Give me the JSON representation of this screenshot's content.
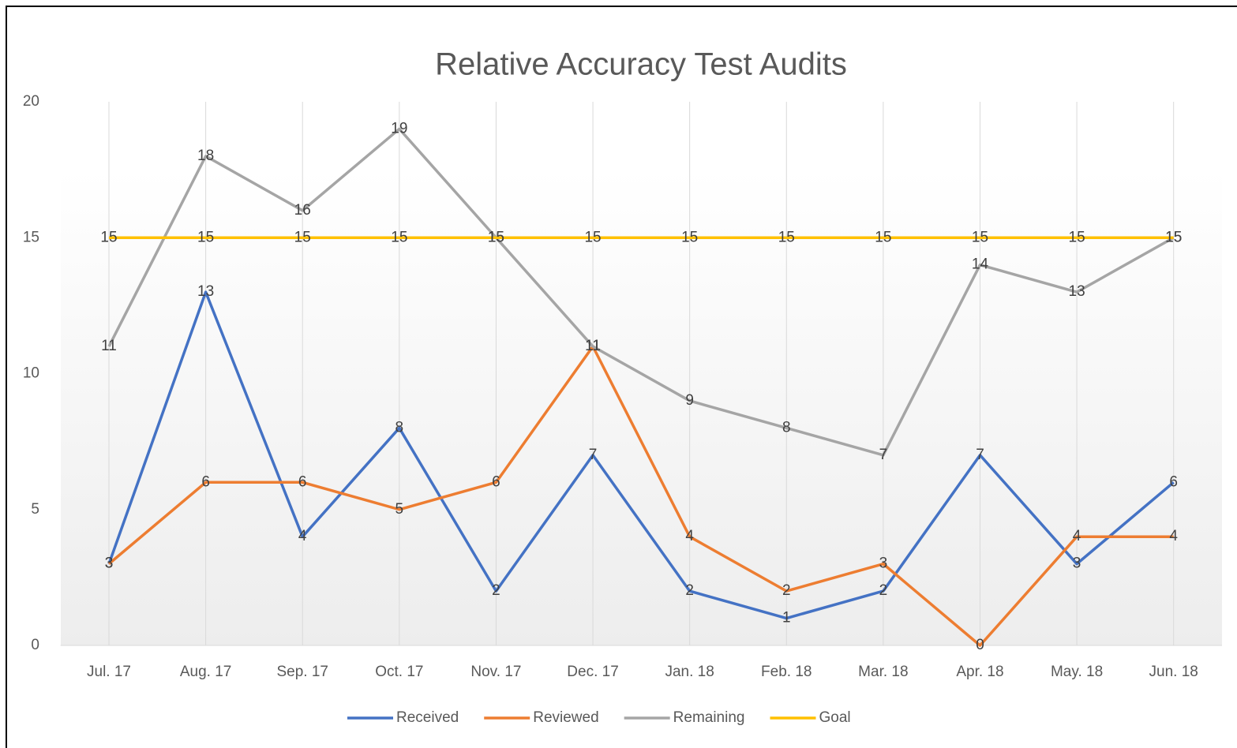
{
  "chart_data": {
    "type": "line",
    "title": "Relative Accuracy Test Audits",
    "categories": [
      "Jul. 17",
      "Aug. 17",
      "Sep. 17",
      "Oct. 17",
      "Nov. 17",
      "Dec. 17",
      "Jan. 18",
      "Feb. 18",
      "Mar. 18",
      "Apr. 18",
      "May. 18",
      "Jun. 18"
    ],
    "series": [
      {
        "name": "Received",
        "color": "#4472c4",
        "values": [
          3,
          13,
          4,
          8,
          2,
          7,
          2,
          1,
          2,
          7,
          3,
          6
        ]
      },
      {
        "name": "Reviewed",
        "color": "#ed7d31",
        "values": [
          3,
          6,
          6,
          5,
          6,
          11,
          4,
          2,
          3,
          0,
          4,
          4
        ]
      },
      {
        "name": "Remaining",
        "color": "#a5a5a5",
        "values": [
          11,
          18,
          16,
          19,
          15,
          11,
          9,
          8,
          7,
          14,
          13,
          15
        ]
      },
      {
        "name": "Goal",
        "color": "#ffc000",
        "values": [
          15,
          15,
          15,
          15,
          15,
          15,
          15,
          15,
          15,
          15,
          15,
          15
        ]
      }
    ],
    "ylim": [
      0,
      20
    ],
    "yticks": [
      0,
      5,
      10,
      15,
      20
    ],
    "grid": true,
    "legend": "bottom"
  }
}
